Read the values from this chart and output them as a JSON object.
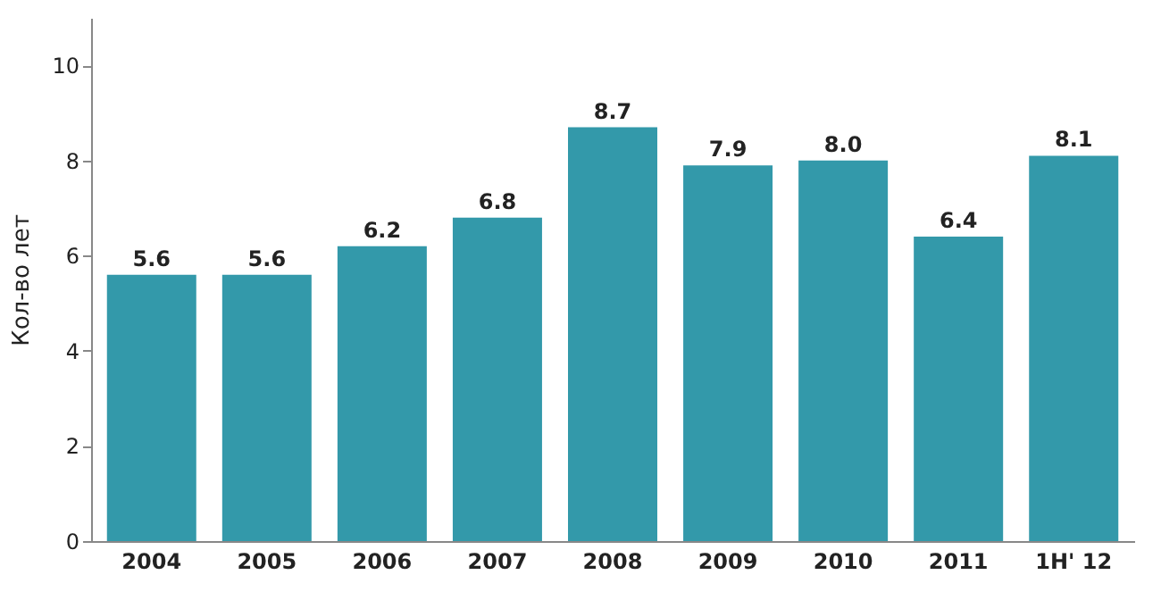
{
  "chart_data": {
    "type": "bar",
    "ylabel": "Кол-во лет",
    "categories": [
      "2004",
      "2005",
      "2006",
      "2007",
      "2008",
      "2009",
      "2010",
      "2011",
      "1H' 12"
    ],
    "values": [
      5.6,
      5.6,
      6.2,
      6.8,
      8.7,
      7.9,
      8.0,
      6.4,
      8.1
    ],
    "color": "#3399aa",
    "ylim": [
      0,
      11
    ],
    "yticks": [
      0,
      2,
      4,
      6,
      8,
      10
    ],
    "grid": false,
    "value_labels": [
      "5.6",
      "5.6",
      "6.2",
      "6.8",
      "8.7",
      "7.9",
      "8.0",
      "6.4",
      "8.1"
    ]
  }
}
